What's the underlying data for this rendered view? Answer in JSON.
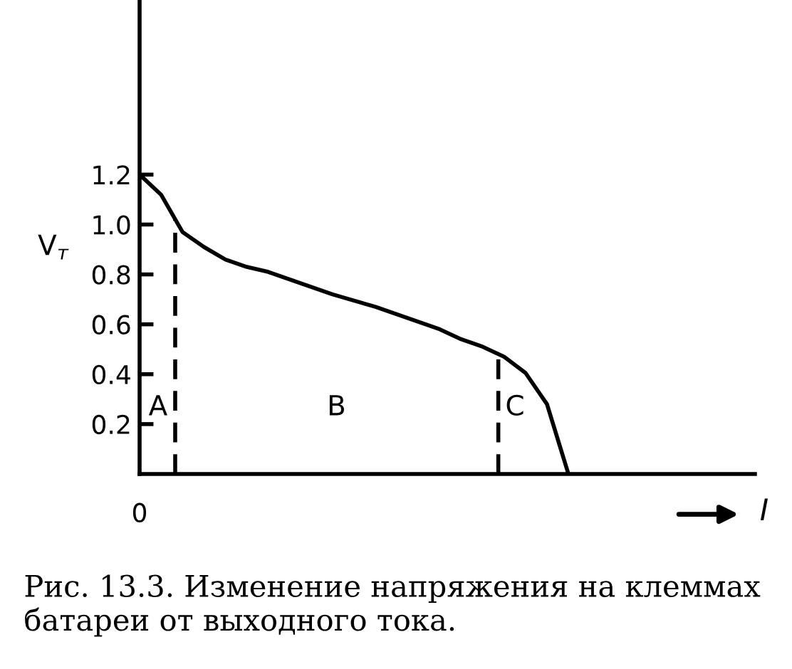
{
  "chart_data": {
    "type": "line",
    "ylabel": "V$_{т}$",
    "categories": [
      null,
      null,
      null,
      null,
      null,
      null,
      null,
      null,
      null,
      null,
      null,
      null,
      null,
      null,
      null,
      null,
      null,
      null,
      null,
      null,
      null,
      null,
      null,
      null,
      null,
      null,
      null,
      null,
      null
    ],
    "series": [
      {
        "color": "#000000",
        "values": [
          1.2,
          1.12,
          0.97,
          0.91,
          0.86,
          0.83,
          0.81,
          0.78,
          0.75,
          0.72,
          0.695,
          0.67,
          0.64,
          0.61,
          0.58,
          0.54,
          0.51,
          0.47,
          0.405,
          0.28,
          0,
          null,
          null,
          null,
          null,
          null,
          null,
          null,
          null
        ]
      }
    ],
    "ylim": [
      0,
      1.9
    ],
    "yticks": [
      {
        "value": 0.2,
        "label": "0.2"
      },
      {
        "value": 0.4,
        "label": "0.4"
      },
      {
        "value": 0.6,
        "label": "0.6"
      },
      {
        "value": 0.8,
        "label": "0.8"
      },
      {
        "value": 1.0,
        "label": "1.0"
      },
      {
        "value": 1.2,
        "label": "1.2"
      }
    ],
    "annotations": [
      "0",
      "A",
      "B",
      "C",
      "I",
      "Рис. 13.3. Изменение напряжения на клеммах батареи от выходного тока."
    ],
    "grid": false,
    "legend": false,
    "marker": "none",
    "line_style": "solid"
  }
}
